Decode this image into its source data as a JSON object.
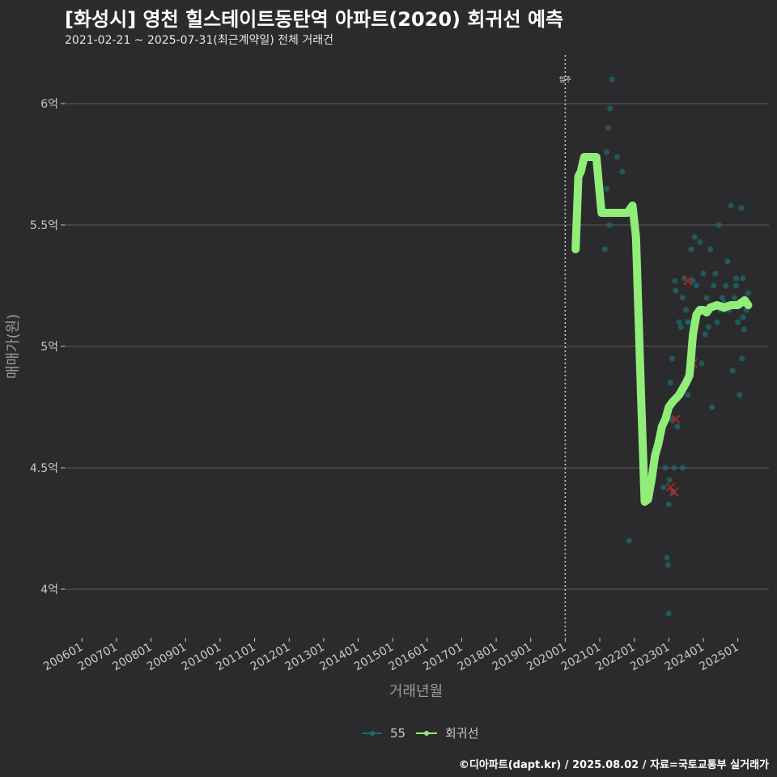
{
  "header": {
    "title": "[화성시] 영천 힐스테이트동탄역 아파트(2020) 회귀선 예측",
    "subtitle": "2021-02-21 ~ 2025-07-31(최근계약일) 전체 거래건"
  },
  "footer": {
    "credit": "©디아파트(dapt.kr) / 2025.08.02 / 자료=국토교통부 실거래가"
  },
  "colors": {
    "background": "#2b2b2d",
    "grid": "#5c5c5c",
    "trend": "#90ee78",
    "points": "#1e6b6b",
    "highlight": "#b52a2a"
  },
  "chart_data": {
    "type": "scatter",
    "xlabel": "거래년월",
    "ylabel": "매매가(원)",
    "xlim": [
      2005.5,
      2025.9
    ],
    "ylim": [
      3.8,
      6.2
    ],
    "x_ticks": [
      {
        "label": "200601",
        "value": 2006.0
      },
      {
        "label": "200701",
        "value": 2007.0
      },
      {
        "label": "200801",
        "value": 2008.0
      },
      {
        "label": "200901",
        "value": 2009.0
      },
      {
        "label": "201001",
        "value": 2010.0
      },
      {
        "label": "201101",
        "value": 2011.0
      },
      {
        "label": "201201",
        "value": 2012.0
      },
      {
        "label": "201301",
        "value": 2013.0
      },
      {
        "label": "201401",
        "value": 2014.0
      },
      {
        "label": "201501",
        "value": 2015.0
      },
      {
        "label": "201601",
        "value": 2016.0
      },
      {
        "label": "201701",
        "value": 2017.0
      },
      {
        "label": "201801",
        "value": 2018.0
      },
      {
        "label": "201901",
        "value": 2019.0
      },
      {
        "label": "202001",
        "value": 2020.0
      },
      {
        "label": "202101",
        "value": 2021.0
      },
      {
        "label": "202201",
        "value": 2022.0
      },
      {
        "label": "202301",
        "value": 2023.0
      },
      {
        "label": "202401",
        "value": 2024.0
      },
      {
        "label": "202501",
        "value": 2025.0
      }
    ],
    "y_ticks": [
      {
        "label": "4억",
        "value": 4.0
      },
      {
        "label": "4.5억",
        "value": 4.5
      },
      {
        "label": "5억",
        "value": 5.0
      },
      {
        "label": "5.5억",
        "value": 5.5
      },
      {
        "label": "6억",
        "value": 6.0
      }
    ],
    "move_in": {
      "label": "입주",
      "x": 2020.0
    },
    "legend": [
      {
        "name": "55",
        "kind": "scatter"
      },
      {
        "name": "회귀선",
        "kind": "line"
      }
    ],
    "series": [
      {
        "name": "55",
        "points": [
          [
            2021.15,
            5.4
          ],
          [
            2021.2,
            5.65
          ],
          [
            2021.25,
            5.9
          ],
          [
            2021.3,
            5.98
          ],
          [
            2021.35,
            6.1
          ],
          [
            2021.2,
            5.8
          ],
          [
            2021.28,
            5.5
          ],
          [
            2021.5,
            5.78
          ],
          [
            2021.65,
            5.72
          ],
          [
            2021.85,
            4.2
          ],
          [
            2022.85,
            4.42
          ],
          [
            2022.9,
            4.5
          ],
          [
            2022.95,
            4.13
          ],
          [
            2022.98,
            4.1
          ],
          [
            2023.0,
            4.35
          ],
          [
            2023.02,
            4.45
          ],
          [
            2023.05,
            4.85
          ],
          [
            2023.08,
            4.7
          ],
          [
            2023.1,
            4.95
          ],
          [
            2023.12,
            4.4
          ],
          [
            2023.15,
            4.5
          ],
          [
            2023.18,
            5.27
          ],
          [
            2023.2,
            5.23
          ],
          [
            2023.25,
            4.67
          ],
          [
            2023.3,
            5.1
          ],
          [
            2023.35,
            5.08
          ],
          [
            2023.4,
            5.2
          ],
          [
            2023.45,
            5.28
          ],
          [
            2023.5,
            5.15
          ],
          [
            2023.55,
            4.8
          ],
          [
            2023.6,
            5.1
          ],
          [
            2023.65,
            5.4
          ],
          [
            2023.7,
            5.27
          ],
          [
            2023.75,
            5.45
          ],
          [
            2023.8,
            5.25
          ],
          [
            2023.85,
            5.15
          ],
          [
            2023.9,
            5.43
          ],
          [
            2023.95,
            4.93
          ],
          [
            2024.0,
            5.3
          ],
          [
            2024.05,
            5.05
          ],
          [
            2024.1,
            5.2
          ],
          [
            2024.15,
            5.08
          ],
          [
            2024.2,
            5.4
          ],
          [
            2024.25,
            4.75
          ],
          [
            2024.3,
            5.25
          ],
          [
            2024.35,
            5.3
          ],
          [
            2024.4,
            5.1
          ],
          [
            2024.45,
            5.5
          ],
          [
            2024.5,
            5.15
          ],
          [
            2024.55,
            5.2
          ],
          [
            2024.6,
            5.18
          ],
          [
            2024.65,
            5.25
          ],
          [
            2024.7,
            5.35
          ],
          [
            2024.75,
            5.15
          ],
          [
            2024.8,
            5.58
          ],
          [
            2024.85,
            4.9
          ],
          [
            2024.9,
            5.2
          ],
          [
            2024.95,
            5.28
          ],
          [
            2025.0,
            5.1
          ],
          [
            2025.05,
            4.8
          ],
          [
            2025.1,
            5.57
          ],
          [
            2025.12,
            4.95
          ],
          [
            2025.15,
            5.28
          ],
          [
            2025.18,
            5.07
          ],
          [
            2025.2,
            5.2
          ],
          [
            2025.25,
            5.15
          ],
          [
            2025.3,
            5.22
          ],
          [
            2023.0,
            3.9
          ],
          [
            2023.4,
            4.5
          ],
          [
            2023.55,
            5.1
          ],
          [
            2024.6,
            5.15
          ],
          [
            2024.95,
            5.25
          ],
          [
            2025.15,
            5.12
          ]
        ]
      },
      {
        "name": "회귀선",
        "points": [
          [
            2020.3,
            5.4
          ],
          [
            2020.38,
            5.7
          ],
          [
            2020.45,
            5.72
          ],
          [
            2020.55,
            5.78
          ],
          [
            2020.9,
            5.78
          ],
          [
            2021.05,
            5.55
          ],
          [
            2021.4,
            5.55
          ],
          [
            2021.8,
            5.55
          ],
          [
            2021.95,
            5.58
          ],
          [
            2022.05,
            5.45
          ],
          [
            2022.2,
            4.78
          ],
          [
            2022.3,
            4.36
          ],
          [
            2022.4,
            4.37
          ],
          [
            2022.5,
            4.45
          ],
          [
            2022.6,
            4.55
          ],
          [
            2022.7,
            4.6
          ],
          [
            2022.8,
            4.67
          ],
          [
            2022.9,
            4.7
          ],
          [
            2023.0,
            4.75
          ],
          [
            2023.1,
            4.77
          ],
          [
            2023.3,
            4.8
          ],
          [
            2023.5,
            4.85
          ],
          [
            2023.6,
            4.88
          ],
          [
            2023.7,
            5.05
          ],
          [
            2023.8,
            5.13
          ],
          [
            2023.9,
            5.15
          ],
          [
            2024.0,
            5.15
          ],
          [
            2024.1,
            5.14
          ],
          [
            2024.2,
            5.16
          ],
          [
            2024.4,
            5.17
          ],
          [
            2024.6,
            5.16
          ],
          [
            2024.8,
            5.17
          ],
          [
            2025.0,
            5.17
          ],
          [
            2025.1,
            5.18
          ],
          [
            2025.2,
            5.19
          ],
          [
            2025.3,
            5.17
          ]
        ]
      }
    ],
    "highlights": [
      [
        2023.05,
        4.42
      ],
      [
        2023.15,
        4.4
      ],
      [
        2023.2,
        4.7
      ],
      [
        2023.55,
        5.27
      ],
      [
        2023.7,
        4.93
      ]
    ]
  }
}
